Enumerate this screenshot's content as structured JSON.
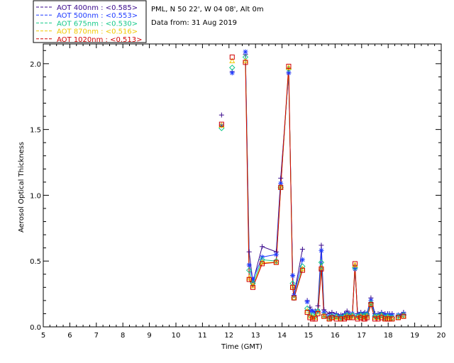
{
  "header": {
    "site": "PML, N 50 22', W 04 08', Alt 0m",
    "date": "Data from: 31 Aug 2019"
  },
  "legend": [
    {
      "label": "AOT  400nm : <0.585>",
      "color": "#3a0a8c"
    },
    {
      "label": "AOT  500nm : <0.553>",
      "color": "#1f3bff"
    },
    {
      "label": "AOT  675nm : <0.530>",
      "color": "#16c98a"
    },
    {
      "label": "AOT  870nm : <0.516>",
      "color": "#f0c800"
    },
    {
      "label": "AOT 1020nm : <0.513>",
      "color": "#d10000"
    }
  ],
  "chart_data": {
    "type": "line",
    "xlabel": "Time (GMT)",
    "ylabel": "Aerosol Optical Thickness",
    "xlim": [
      5,
      20
    ],
    "ylim": [
      0,
      2.15
    ],
    "xticks": [
      "5",
      "6",
      "7",
      "8",
      "9",
      "10",
      "11",
      "12",
      "13",
      "14",
      "15",
      "16",
      "17",
      "18",
      "19",
      "20"
    ],
    "yticks": [
      "0.0",
      "0.5",
      "1.0",
      "1.5",
      "2.0"
    ],
    "grid": false,
    "legend_position": "top-left, outside plot",
    "segments": [
      [
        0,
        0
      ],
      [
        1,
        1
      ],
      [
        2,
        11
      ],
      [
        12,
        12
      ],
      [
        13,
        15
      ],
      [
        16,
        40
      ],
      [
        41,
        42
      ]
    ],
    "x": [
      11.72,
      12.12,
      12.62,
      12.76,
      12.9,
      13.25,
      13.78,
      13.95,
      14.25,
      14.4,
      14.45,
      14.77,
      14.95,
      15.05,
      15.15,
      15.25,
      15.35,
      15.48,
      15.58,
      15.78,
      15.88,
      16.05,
      16.22,
      16.35,
      16.45,
      16.55,
      16.65,
      16.75,
      16.85,
      16.97,
      17.08,
      17.12,
      17.2,
      17.35,
      17.5,
      17.62,
      17.75,
      17.88,
      17.98,
      18.05,
      18.15,
      18.38,
      18.58
    ],
    "series": [
      {
        "name": "AOT  400nm : <0.585>",
        "color": "#3a0a8c",
        "marker": "plus",
        "values": [
          1.61,
          1.94,
          2.07,
          0.57,
          0.34,
          0.61,
          0.57,
          1.13,
          1.93,
          0.39,
          0.24,
          0.59,
          0.2,
          0.15,
          0.12,
          0.12,
          0.16,
          0.62,
          0.13,
          0.1,
          0.11,
          0.1,
          0.09,
          0.1,
          0.12,
          0.1,
          0.1,
          0.44,
          0.1,
          0.11,
          0.1,
          0.11,
          0.1,
          0.22,
          0.1,
          0.1,
          0.11,
          0.1,
          0.1,
          0.1,
          0.1,
          0.09,
          0.11
        ]
      },
      {
        "name": "AOT  500nm : <0.553>",
        "color": "#1f3bff",
        "marker": "asterisk",
        "values": [
          1.53,
          1.93,
          2.09,
          0.47,
          0.36,
          0.53,
          0.55,
          1.09,
          1.93,
          0.39,
          0.24,
          0.51,
          0.19,
          0.12,
          0.12,
          0.11,
          0.12,
          0.58,
          0.11,
          0.08,
          0.09,
          0.09,
          0.08,
          0.09,
          0.1,
          0.09,
          0.1,
          0.44,
          0.09,
          0.1,
          0.09,
          0.1,
          0.1,
          0.2,
          0.09,
          0.09,
          0.1,
          0.09,
          0.09,
          0.09,
          0.09,
          0.09,
          0.1
        ]
      },
      {
        "name": "AOT  675nm : <0.530>",
        "color": "#16c98a",
        "marker": "diamond",
        "values": [
          1.51,
          1.97,
          2.05,
          0.43,
          0.33,
          0.51,
          0.5,
          1.06,
          1.96,
          0.33,
          0.22,
          0.46,
          0.14,
          0.09,
          0.09,
          0.08,
          0.12,
          0.49,
          0.09,
          0.07,
          0.08,
          0.08,
          0.07,
          0.08,
          0.09,
          0.08,
          0.09,
          0.45,
          0.08,
          0.09,
          0.08,
          0.09,
          0.09,
          0.18,
          0.08,
          0.08,
          0.09,
          0.07,
          0.08,
          0.07,
          0.07,
          0.08,
          0.09
        ]
      },
      {
        "name": "AOT  870nm : <0.516>",
        "color": "#f0c800",
        "marker": "triangle",
        "values": [
          1.53,
          2.02,
          2.02,
          0.37,
          0.31,
          0.49,
          0.49,
          1.06,
          1.97,
          0.3,
          0.22,
          0.44,
          0.12,
          0.08,
          0.07,
          0.07,
          0.11,
          0.45,
          0.08,
          0.06,
          0.07,
          0.07,
          0.06,
          0.07,
          0.08,
          0.07,
          0.08,
          0.47,
          0.07,
          0.08,
          0.07,
          0.07,
          0.08,
          0.17,
          0.07,
          0.07,
          0.08,
          0.06,
          0.07,
          0.06,
          0.06,
          0.07,
          0.08
        ]
      },
      {
        "name": "AOT 1020nm : <0.513>",
        "color": "#d10000",
        "marker": "square",
        "values": [
          1.54,
          2.05,
          2.01,
          0.36,
          0.3,
          0.48,
          0.49,
          1.06,
          1.98,
          0.3,
          0.22,
          0.43,
          0.11,
          0.07,
          0.06,
          0.06,
          0.1,
          0.44,
          0.08,
          0.06,
          0.07,
          0.06,
          0.06,
          0.06,
          0.07,
          0.07,
          0.07,
          0.48,
          0.06,
          0.07,
          0.06,
          0.06,
          0.07,
          0.17,
          0.06,
          0.06,
          0.07,
          0.06,
          0.06,
          0.06,
          0.06,
          0.07,
          0.08
        ]
      }
    ]
  }
}
